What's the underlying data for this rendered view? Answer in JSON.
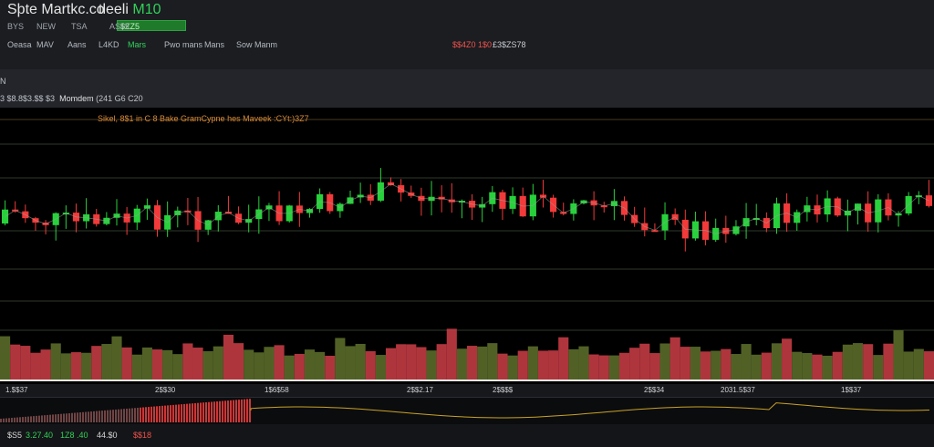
{
  "header": {
    "title": "Sþte Martkc.co",
    "subtitle_white": "tleeli ",
    "subtitle_green": "M10",
    "price_badge": "$ZZ5",
    "tabs": [
      "BYS",
      "NEW",
      "TSA",
      "ASMI"
    ],
    "nav": [
      "Oeasa",
      "MAV",
      "Aans",
      "L4KD",
      "Mars",
      "Pwo mans",
      "Mans",
      "Sow",
      "Manm"
    ],
    "nav_active_index": 4,
    "quote_red": "$$4Z0  1$0",
    "quote_white": "£3$ZS78"
  },
  "toolbar": {
    "n_label": "N",
    "row_left": "3  $8.8$3.$$  $3",
    "row_main": "Momdem",
    "row_right": "(241  G6  C20"
  },
  "chart": {
    "caption": "Sikel, 8$1 in  C 8 Bake GramCypne hes Maveek  :CYt:)3Z7"
  },
  "xaxis": {
    "ticks": [
      "1.$$37",
      "2$$30",
      "1$6$58",
      "2$$2.17",
      "2$$$$",
      "2$$34",
      "2031.5$37",
      "1$$37"
    ]
  },
  "footer": {
    "items": [
      "$S5",
      "3.27.40",
      "1Z8 .40",
      "44.$0",
      "$$18"
    ],
    "colors": [
      "#d8d8d8",
      "#31d158",
      "#31d158",
      "#d8d8d8",
      "#f0524d"
    ]
  },
  "colors": {
    "up": "#28d13c",
    "down": "#f23a3a",
    "grid": "#2e3a2a",
    "osc": "#c9a227"
  }
}
